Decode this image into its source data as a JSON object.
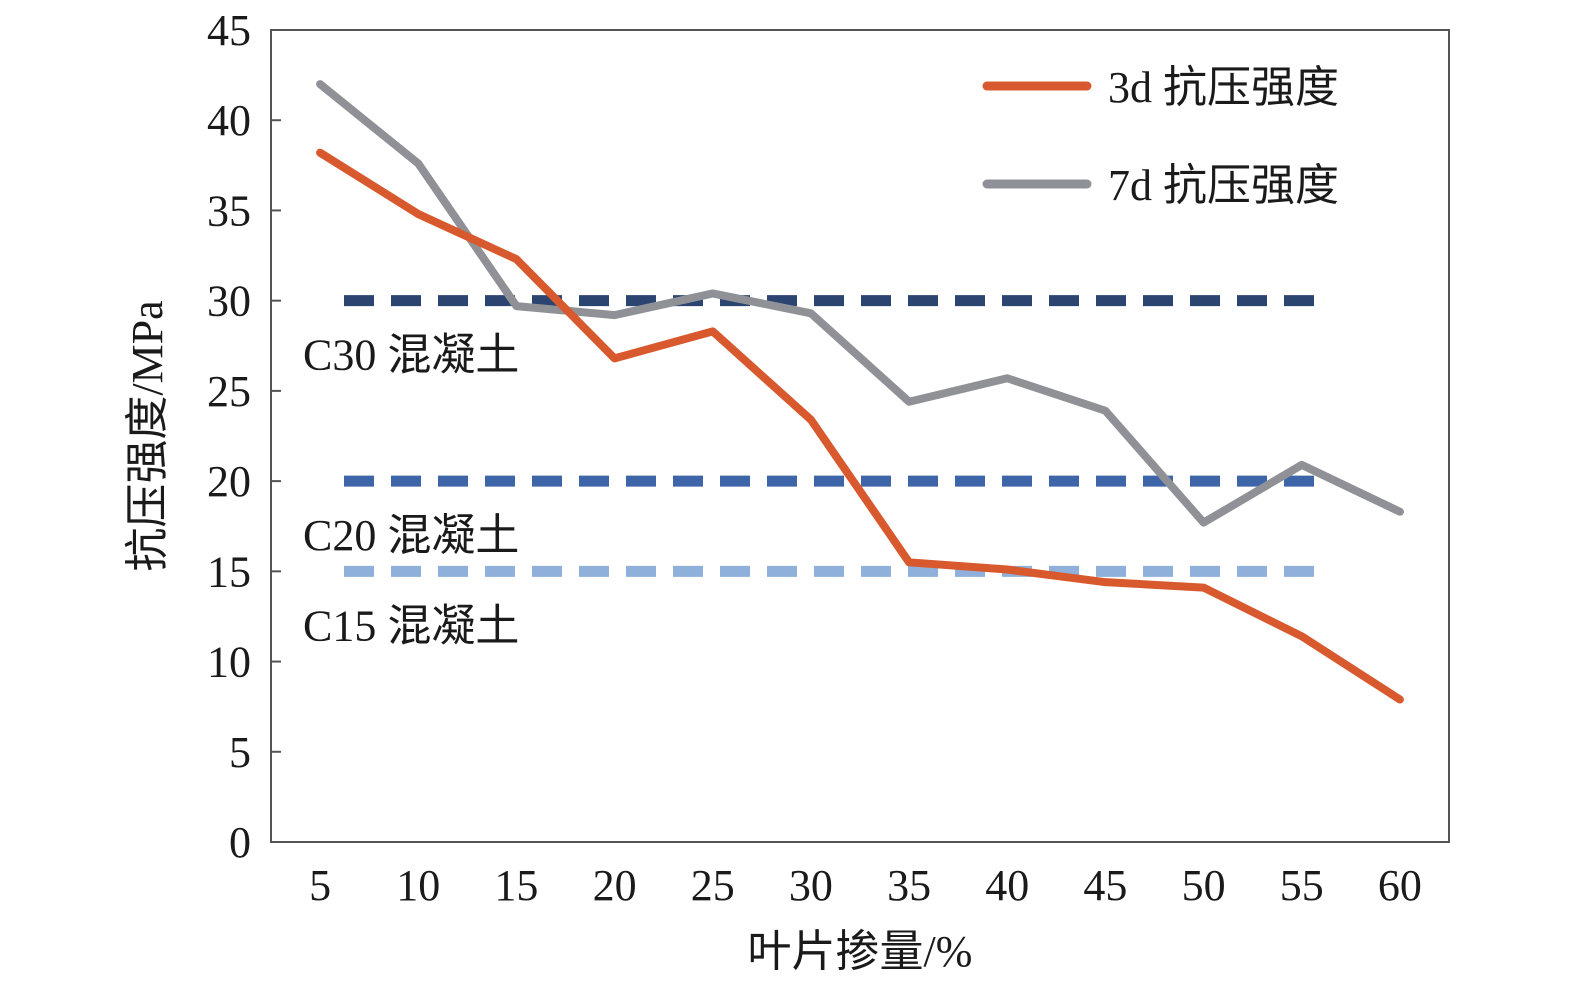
{
  "chart_data": {
    "type": "line",
    "xlabel": "叶片掺量/%",
    "ylabel": "抗压强度/MPa",
    "x": [
      5,
      10,
      15,
      20,
      25,
      30,
      35,
      40,
      45,
      50,
      55,
      60
    ],
    "ylim": [
      0,
      45
    ],
    "yticks": [
      0,
      5,
      10,
      15,
      20,
      25,
      30,
      35,
      40,
      45
    ],
    "grid": false,
    "legend_position": "top-right",
    "series": [
      {
        "name": "3d 抗压强度",
        "color": "#d9592e",
        "style": "solid",
        "values": [
          38.2,
          34.8,
          32.3,
          26.8,
          28.3,
          23.4,
          15.5,
          15.1,
          14.4,
          14.1,
          11.4,
          7.9
        ]
      },
      {
        "name": "7d 抗压强度",
        "color": "#8f9196",
        "style": "solid",
        "values": [
          42.0,
          37.6,
          29.7,
          29.2,
          30.4,
          29.3,
          24.4,
          25.7,
          23.9,
          17.7,
          20.9,
          18.3
        ]
      }
    ],
    "reference_lines": [
      {
        "label": "C30 混凝土",
        "value": 30,
        "color": "#2b4570",
        "style": "dashed"
      },
      {
        "label": "C20 混凝土",
        "value": 20,
        "color": "#3d65a8",
        "style": "dashed"
      },
      {
        "label": "C15 混凝土",
        "value": 15,
        "color": "#8fb0da",
        "style": "dashed"
      }
    ]
  }
}
